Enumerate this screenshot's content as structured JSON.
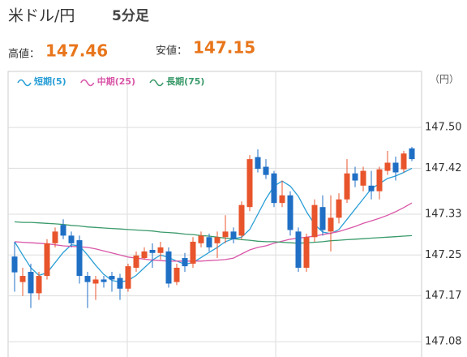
{
  "header": {
    "pair": "米ドル/円",
    "timeframe": "5分足",
    "high_label": "高値：",
    "high_value": "147.46",
    "low_label": "安値：",
    "low_value": "147.15"
  },
  "chart_data": {
    "type": "candlestick",
    "unit": "（円）",
    "up_color": "#e8542c",
    "down_color": "#1f6fc5",
    "ylim": [
      147.05,
      147.61
    ],
    "yticks": [
      {
        "value": 147.5,
        "label": "147.50"
      },
      147.42,
      147.33,
      147.25,
      147.17,
      147.08
    ],
    "grid": true,
    "open": [
      147.247,
      147.197,
      147.217,
      147.175,
      147.209,
      147.273,
      147.309,
      147.288,
      147.279,
      147.209,
      147.194,
      147.202,
      147.209,
      147.205,
      147.184,
      147.225,
      147.244,
      147.26,
      147.254,
      147.257,
      147.197,
      147.244,
      147.233,
      147.273,
      147.285,
      147.273,
      147.285,
      147.296,
      147.288,
      147.344,
      147.442,
      147.423,
      147.41,
      147.352,
      147.367,
      147.296,
      147.225,
      147.285,
      147.344,
      147.296,
      147.323,
      147.359,
      147.41,
      147.386,
      147.386,
      147.375,
      147.415,
      147.431,
      147.418,
      147.459
    ],
    "high": [
      147.276,
      147.225,
      147.233,
      147.217,
      147.281,
      147.304,
      147.32,
      147.296,
      147.288,
      147.217,
      147.209,
      147.209,
      147.217,
      147.213,
      147.233,
      147.257,
      147.265,
      147.273,
      147.276,
      147.265,
      147.233,
      147.254,
      147.285,
      147.296,
      147.292,
      147.296,
      147.328,
      147.304,
      147.355,
      147.446,
      147.457,
      147.438,
      147.415,
      147.396,
      147.375,
      147.304,
      147.292,
      147.359,
      147.367,
      147.367,
      147.371,
      147.438,
      147.423,
      147.423,
      147.415,
      147.423,
      147.454,
      147.443,
      147.454,
      147.462
    ],
    "low": [
      147.178,
      147.17,
      147.146,
      147.162,
      147.202,
      147.265,
      147.281,
      147.265,
      147.194,
      147.146,
      147.162,
      147.186,
      147.178,
      147.162,
      147.178,
      147.217,
      147.241,
      147.225,
      147.241,
      147.186,
      147.191,
      147.217,
      147.225,
      147.265,
      147.257,
      147.244,
      147.273,
      147.273,
      147.281,
      147.336,
      147.412,
      147.399,
      147.344,
      147.344,
      147.288,
      147.217,
      147.217,
      147.276,
      147.288,
      147.257,
      147.312,
      147.352,
      147.383,
      147.375,
      147.359,
      147.359,
      147.407,
      147.396,
      147.412,
      147.434
    ],
    "close": [
      147.216,
      147.209,
      147.175,
      147.209,
      147.273,
      147.296,
      147.288,
      147.273,
      147.209,
      147.197,
      147.202,
      147.197,
      147.202,
      147.184,
      147.228,
      147.249,
      147.257,
      147.254,
      147.265,
      147.194,
      147.225,
      147.228,
      147.276,
      147.288,
      147.265,
      147.285,
      147.296,
      147.281,
      147.348,
      147.438,
      147.419,
      147.407,
      147.352,
      147.367,
      147.299,
      147.225,
      147.285,
      147.348,
      147.299,
      147.323,
      147.359,
      147.41,
      147.396,
      147.415,
      147.375,
      147.418,
      147.431,
      147.412,
      147.449,
      147.438
    ],
    "series": [
      {
        "name": "短期(5)",
        "color": "#2a9fd6",
        "values": [
          147.276,
          147.25,
          147.225,
          147.21,
          147.215,
          147.235,
          147.255,
          147.27,
          147.268,
          147.25,
          147.23,
          147.212,
          147.2,
          147.197,
          147.2,
          147.21,
          147.225,
          147.24,
          147.25,
          147.245,
          147.238,
          147.232,
          147.235,
          147.245,
          147.255,
          147.265,
          147.276,
          147.282,
          147.285,
          147.3,
          147.33,
          147.36,
          147.385,
          147.395,
          147.385,
          147.365,
          147.335,
          147.31,
          147.295,
          147.292,
          147.3,
          147.32,
          147.34,
          147.36,
          147.38,
          147.39,
          147.4,
          147.405,
          147.412,
          147.42
        ]
      },
      {
        "name": "中期(25)",
        "color": "#d957a8",
        "values": [
          147.276,
          147.275,
          147.274,
          147.273,
          147.272,
          147.27,
          147.268,
          147.267,
          147.266,
          147.265,
          147.262,
          147.258,
          147.254,
          147.25,
          147.246,
          147.244,
          147.242,
          147.24,
          147.239,
          147.238,
          147.238,
          147.238,
          147.238,
          147.238,
          147.239,
          147.24,
          147.241,
          147.244,
          147.252,
          147.26,
          147.265,
          147.268,
          147.273,
          147.277,
          147.281,
          147.283,
          147.285,
          147.287,
          147.29,
          147.293,
          147.296,
          147.301,
          147.306,
          147.312,
          147.317,
          147.322,
          147.328,
          147.335,
          147.343,
          147.352
        ]
      },
      {
        "name": "長期(75)",
        "color": "#3a9a6a",
        "values": [
          147.315,
          147.314,
          147.314,
          147.313,
          147.312,
          147.311,
          147.31,
          147.308,
          147.307,
          147.305,
          147.304,
          147.303,
          147.302,
          147.301,
          147.3,
          147.299,
          147.298,
          147.297,
          147.295,
          147.294,
          147.293,
          147.291,
          147.29,
          147.288,
          147.287,
          147.285,
          147.283,
          147.282,
          147.28,
          147.279,
          147.277,
          147.276,
          147.276,
          147.275,
          147.274,
          147.273,
          147.274,
          147.275,
          147.276,
          147.278,
          147.279,
          147.28,
          147.281,
          147.282,
          147.283,
          147.284,
          147.285,
          147.286,
          147.287,
          147.288
        ]
      }
    ]
  }
}
